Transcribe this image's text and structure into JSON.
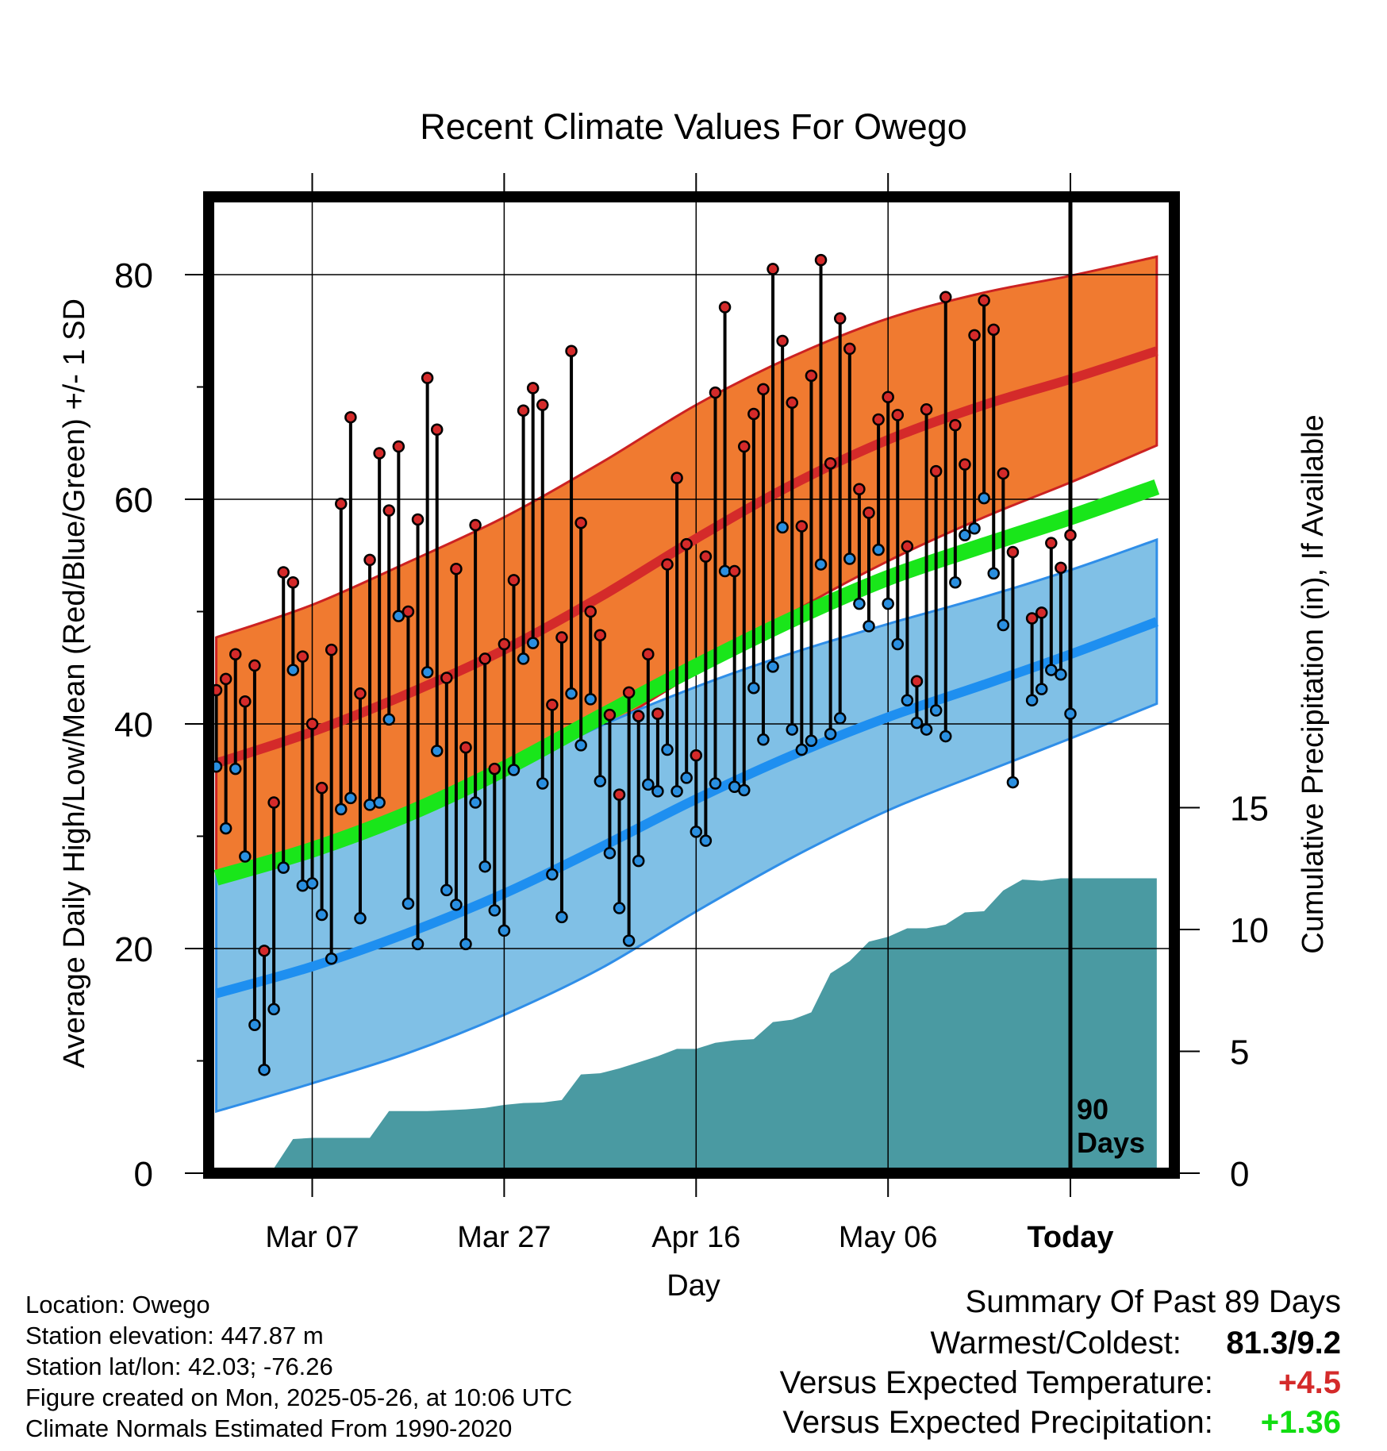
{
  "chart_data": {
    "type": "line",
    "title": "Recent Climate Values For Owego",
    "xlabel": "Day",
    "ylabel": "Average Daily High/Low/Mean (Red/Blue/Green) +/- 1 SD",
    "y2label": "Cumulative Precipitation (in), If Available",
    "ylim": [
      0,
      85
    ],
    "y2lim": [
      0,
      22
    ],
    "y_ticks": [
      0,
      20,
      40,
      60,
      80
    ],
    "y2_ticks": [
      0,
      5,
      10,
      15
    ],
    "x_range_days": [
      -89,
      9
    ],
    "x_ticks": [
      {
        "day": -79,
        "label": "Mar 07"
      },
      {
        "day": -59,
        "label": "Mar 27"
      },
      {
        "day": -39,
        "label": "Apr 16"
      },
      {
        "day": -19,
        "label": "May 06"
      },
      {
        "day": 0,
        "label": "Today"
      }
    ],
    "today_marker": {
      "day": 0,
      "label_line1": "90",
      "label_line2": "Days"
    },
    "grid": true,
    "colors": {
      "high_band": "#f07a30",
      "high_line": "#d42a2a",
      "high_edge": "#cc2222",
      "low_band": "#80c0e6",
      "low_line": "#1e8ff0",
      "low_edge": "#2f8ee8",
      "mean_line": "#19e61a",
      "precip": "#4a9aa2",
      "high_dot": "#d42a2a",
      "low_dot": "#2a8fe0"
    },
    "normals": {
      "day": [
        -89,
        -79,
        -69,
        -59,
        -49,
        -39,
        -29,
        -19,
        -9,
        0,
        9
      ],
      "high_mean": [
        36.5,
        39.3,
        42.7,
        46.6,
        51.3,
        56.5,
        61.3,
        65.3,
        68.4,
        70.7,
        73.2
      ],
      "high_sd": [
        11.2,
        11.3,
        11.7,
        11.8,
        11.9,
        11.9,
        11.4,
        10.8,
        10.0,
        9.2,
        8.4
      ],
      "low_mean": [
        16.0,
        18.4,
        21.4,
        24.9,
        29.0,
        33.3,
        37.2,
        40.6,
        43.5,
        46.2,
        49.1
      ],
      "low_sd": [
        10.5,
        10.4,
        10.7,
        10.8,
        10.8,
        10.0,
        9.1,
        8.3,
        7.8,
        7.5,
        7.3
      ],
      "mean": [
        26.3,
        28.8,
        32.0,
        36.0,
        40.6,
        45.1,
        49.3,
        53.0,
        55.9,
        58.4,
        61.1
      ]
    },
    "daily": {
      "day": [
        -89,
        -88,
        -87,
        -86,
        -85,
        -84,
        -83,
        -82,
        -81,
        -80,
        -79,
        -78,
        -77,
        -76,
        -75,
        -74,
        -73,
        -72,
        -71,
        -70,
        -69,
        -68,
        -67,
        -66,
        -65,
        -64,
        -63,
        -62,
        -61,
        -60,
        -59,
        -58,
        -57,
        -56,
        -55,
        -54,
        -53,
        -52,
        -51,
        -50,
        -49,
        -48,
        -47,
        -46,
        -45,
        -44,
        -43,
        -42,
        -41,
        -40,
        -39,
        -38,
        -37,
        -36,
        -35,
        -34,
        -33,
        -32,
        -31,
        -30,
        -29,
        -28,
        -27,
        -26,
        -25,
        -24,
        -23,
        -22,
        -21,
        -20,
        -19,
        -18,
        -17,
        -16,
        -15,
        -14,
        -13,
        -12,
        -11,
        -10,
        -9,
        -8,
        -7,
        -6,
        -5,
        -4,
        -3,
        -2,
        -1,
        0
      ],
      "high": [
        43,
        44,
        46.2,
        42,
        45.2,
        19.8,
        33,
        53.5,
        52.6,
        46,
        40,
        34.3,
        46.6,
        59.6,
        67.3,
        42.7,
        54.6,
        64.1,
        59,
        64.7,
        50,
        58.2,
        70.8,
        66.2,
        44.1,
        53.8,
        37.9,
        57.7,
        45.8,
        36,
        47.1,
        52.8,
        67.9,
        69.9,
        68.4,
        41.7,
        47.7,
        73.2,
        57.9,
        50,
        47.9,
        40.8,
        33.7,
        42.8,
        40.7,
        46.2,
        40.9,
        54.2,
        61.9,
        56,
        37.2,
        54.9,
        69.5,
        77.1,
        53.6,
        64.7,
        67.6,
        69.8,
        80.5,
        74.1,
        68.6,
        57.6,
        71,
        81.3,
        63.2,
        76.1,
        73.4,
        60.9,
        58.8,
        67.1,
        69.1,
        67.5,
        55.8,
        43.8,
        68,
        62.5,
        78,
        66.6,
        63.1,
        74.6,
        77.7,
        75.1,
        62.3,
        55.3,
        null,
        49.4,
        49.9,
        56.1,
        53.9,
        56.8
      ],
      "low": [
        36.2,
        30.7,
        36,
        28.2,
        13.2,
        9.2,
        14.6,
        27.2,
        44.8,
        25.6,
        25.8,
        23,
        19.1,
        32.4,
        33.4,
        22.7,
        32.8,
        33,
        40.4,
        49.6,
        24,
        20.4,
        44.6,
        37.6,
        25.2,
        23.9,
        20.4,
        33,
        27.3,
        23.4,
        21.6,
        35.9,
        45.8,
        47.2,
        34.7,
        26.6,
        22.8,
        42.7,
        38.1,
        42.2,
        34.9,
        28.5,
        23.6,
        20.7,
        27.8,
        34.6,
        34,
        37.7,
        34,
        35.2,
        30.4,
        29.6,
        34.7,
        53.6,
        34.4,
        34.1,
        43.2,
        38.6,
        45.1,
        57.5,
        39.5,
        37.7,
        38.5,
        54.2,
        39.1,
        40.5,
        54.7,
        50.7,
        48.7,
        55.5,
        50.7,
        47.1,
        42.1,
        40.1,
        39.5,
        41.2,
        38.9,
        52.6,
        56.8,
        57.4,
        60.1,
        53.4,
        48.8,
        34.8,
        null,
        42.1,
        43.1,
        44.8,
        44.4,
        40.9
      ]
    },
    "precip": {
      "day": [
        -89,
        -87,
        -85,
        -83,
        -81,
        -79,
        -77,
        -75,
        -73,
        -71,
        -69,
        -67,
        -65,
        -63,
        -61,
        -59,
        -57,
        -55,
        -53,
        -51,
        -49,
        -47,
        -45,
        -43,
        -41,
        -39,
        -37,
        -35,
        -33,
        -31,
        -29,
        -27,
        -25,
        -23,
        -21,
        -19,
        -17,
        -15,
        -13,
        -11,
        -9,
        -7,
        -5,
        -3,
        -1,
        0,
        9
      ],
      "value": [
        0,
        0.1,
        0.15,
        0.2,
        1.4,
        1.45,
        1.45,
        1.45,
        1.45,
        2.55,
        2.55,
        2.55,
        2.58,
        2.62,
        2.68,
        2.8,
        2.88,
        2.9,
        3.0,
        4.05,
        4.1,
        4.3,
        4.55,
        4.8,
        5.1,
        5.1,
        5.35,
        5.45,
        5.5,
        6.2,
        6.3,
        6.6,
        8.2,
        8.7,
        9.5,
        9.7,
        10.05,
        10.05,
        10.2,
        10.7,
        10.75,
        11.6,
        12.05,
        12.0,
        12.1,
        12.1,
        12.1
      ]
    }
  },
  "footer": {
    "location": "Location: Owego",
    "elevation": "Station elevation: 447.87 m",
    "latlon": "Station lat/lon: 42.03; -76.26",
    "created": "Figure created on Mon, 2025-05-26, at 10:06 UTC",
    "normals_period": "Climate Normals Estimated From 1990-2020"
  },
  "summary": {
    "heading": "Summary Of Past 89 Days",
    "warmest_coldest_label": "Warmest/Coldest:",
    "warmest_coldest_value": "81.3/9.2",
    "temp_label": "Versus Expected Temperature:",
    "temp_value": "+4.5",
    "temp_color": "#d42a2a",
    "precip_label": "Versus Expected Precipitation:",
    "precip_value": "+1.36",
    "precip_color": "#11dd11"
  }
}
